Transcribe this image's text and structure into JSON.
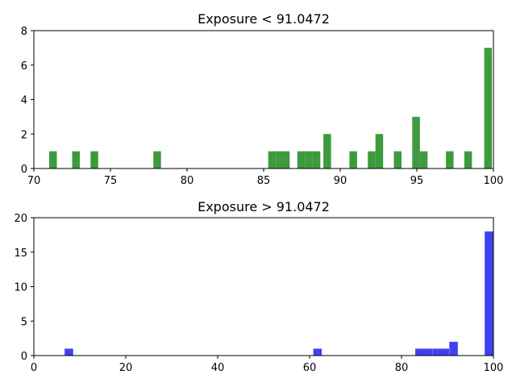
{
  "chart_data": [
    {
      "type": "bar",
      "title": "Exposure < 91.0472",
      "color": "#3d9a3d",
      "bin_width": 0.5,
      "xlim": [
        70,
        100
      ],
      "ylim": [
        0,
        8
      ],
      "xticks": [
        70,
        75,
        80,
        85,
        90,
        95,
        100
      ],
      "yticks": [
        0,
        2,
        4,
        6,
        8
      ],
      "bins": [
        {
          "x0": 71.0,
          "count": 1
        },
        {
          "x0": 72.5,
          "count": 1
        },
        {
          "x0": 73.7,
          "count": 1
        },
        {
          "x0": 77.8,
          "count": 1
        },
        {
          "x0": 85.3,
          "count": 1
        },
        {
          "x0": 85.8,
          "count": 1
        },
        {
          "x0": 86.2,
          "count": 1
        },
        {
          "x0": 87.2,
          "count": 1
        },
        {
          "x0": 87.7,
          "count": 1
        },
        {
          "x0": 88.2,
          "count": 1
        },
        {
          "x0": 88.9,
          "count": 2
        },
        {
          "x0": 90.6,
          "count": 1
        },
        {
          "x0": 91.8,
          "count": 1
        },
        {
          "x0": 92.3,
          "count": 2
        },
        {
          "x0": 93.5,
          "count": 1
        },
        {
          "x0": 94.7,
          "count": 3
        },
        {
          "x0": 95.2,
          "count": 1
        },
        {
          "x0": 96.9,
          "count": 1
        },
        {
          "x0": 98.1,
          "count": 1
        },
        {
          "x0": 99.4,
          "count": 7
        }
      ]
    },
    {
      "type": "bar",
      "title": "Exposure > 91.0472",
      "color": "#4040f0",
      "bin_width": 1.85,
      "xlim": [
        0,
        100
      ],
      "ylim": [
        0,
        20
      ],
      "xticks": [
        0,
        20,
        40,
        60,
        80,
        100
      ],
      "yticks": [
        0,
        5,
        10,
        15,
        20
      ],
      "bins": [
        {
          "x0": 6.7,
          "count": 1
        },
        {
          "x0": 60.8,
          "count": 1
        },
        {
          "x0": 83.0,
          "count": 1
        },
        {
          "x0": 84.8,
          "count": 1
        },
        {
          "x0": 86.7,
          "count": 1
        },
        {
          "x0": 88.5,
          "count": 1
        },
        {
          "x0": 90.4,
          "count": 2
        },
        {
          "x0": 98.1,
          "count": 18
        }
      ]
    }
  ]
}
